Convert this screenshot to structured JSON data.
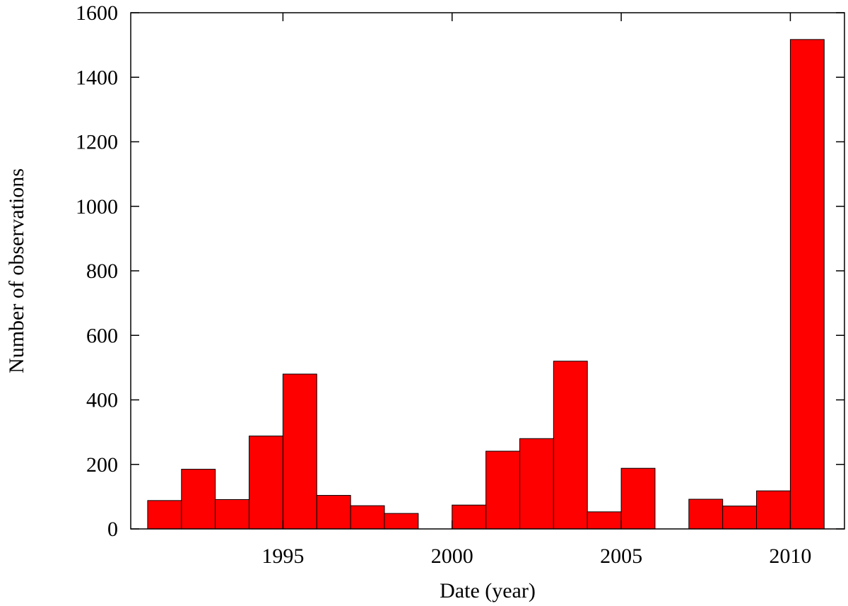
{
  "chart_data": {
    "type": "bar",
    "title": "",
    "xlabel": "Date (year)",
    "ylabel": "Number of observations",
    "bin_width_years": 1,
    "bins": [
      {
        "year_start": 1991,
        "year_end": 1992,
        "value": 88
      },
      {
        "year_start": 1992,
        "year_end": 1993,
        "value": 185
      },
      {
        "year_start": 1993,
        "year_end": 1994,
        "value": 91
      },
      {
        "year_start": 1994,
        "year_end": 1995,
        "value": 288
      },
      {
        "year_start": 1995,
        "year_end": 1996,
        "value": 480
      },
      {
        "year_start": 1996,
        "year_end": 1997,
        "value": 104
      },
      {
        "year_start": 1997,
        "year_end": 1998,
        "value": 72
      },
      {
        "year_start": 1998,
        "year_end": 1999,
        "value": 48
      },
      {
        "year_start": 1999,
        "year_end": 2000,
        "value": 0
      },
      {
        "year_start": 2000,
        "year_end": 2001,
        "value": 74
      },
      {
        "year_start": 2001,
        "year_end": 2002,
        "value": 241
      },
      {
        "year_start": 2002,
        "year_end": 2003,
        "value": 280
      },
      {
        "year_start": 2003,
        "year_end": 2004,
        "value": 520
      },
      {
        "year_start": 2004,
        "year_end": 2005,
        "value": 53
      },
      {
        "year_start": 2005,
        "year_end": 2006,
        "value": 188
      },
      {
        "year_start": 2006,
        "year_end": 2007,
        "value": 0
      },
      {
        "year_start": 2007,
        "year_end": 2008,
        "value": 92
      },
      {
        "year_start": 2008,
        "year_end": 2009,
        "value": 71
      },
      {
        "year_start": 2009,
        "year_end": 2010,
        "value": 118
      },
      {
        "year_start": 2010,
        "year_end": 2011,
        "value": 1517
      }
    ],
    "xlim": [
      1990.5,
      2011.6
    ],
    "ylim": [
      0,
      1600
    ],
    "x_ticks": [
      1995,
      2000,
      2005,
      2010
    ],
    "y_ticks": [
      0,
      200,
      400,
      600,
      800,
      1000,
      1200,
      1400,
      1600
    ],
    "grid": false,
    "legend": "none",
    "bar_color": "#ff0000",
    "bar_edge_color": "#000000",
    "axis_color": "#000000"
  }
}
